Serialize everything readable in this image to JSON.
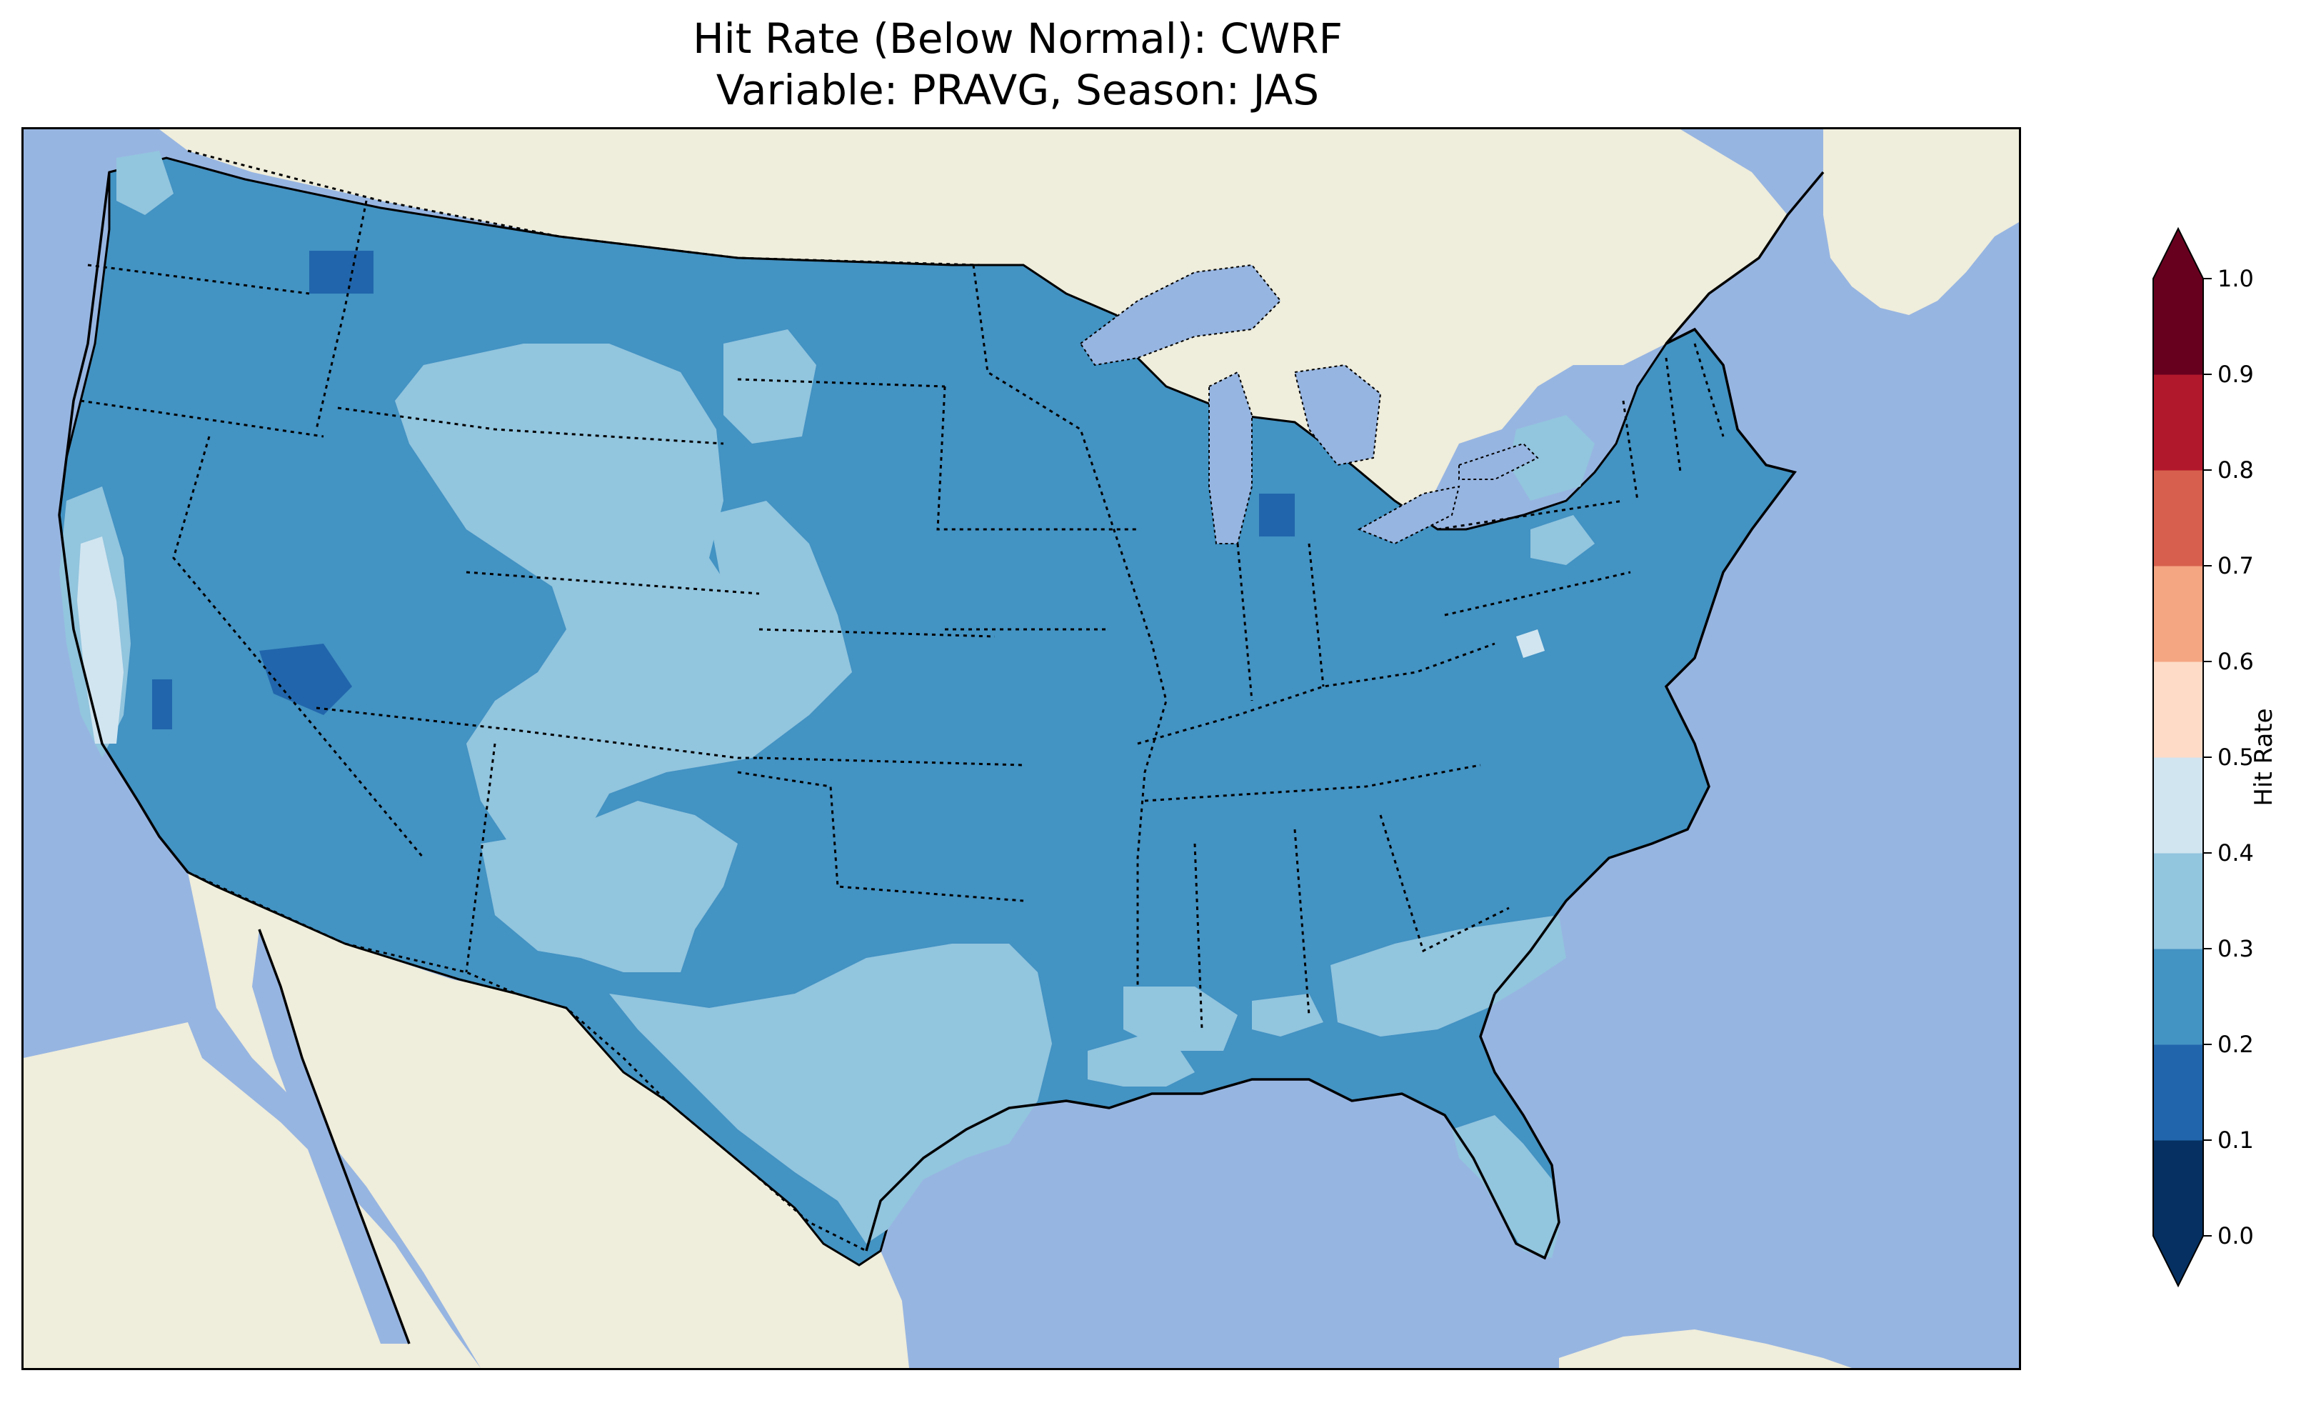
{
  "title": {
    "line1": "Hit Rate (Below Normal): CWRF",
    "line2": "Variable: PRAVG, Season: JAS"
  },
  "colors": {
    "ocean": "#97b5e1",
    "land": "#efeddb",
    "lake": "#97b5e1"
  },
  "colorbar": {
    "label": "Hit Rate",
    "ticks": [
      "0.0",
      "0.1",
      "0.2",
      "0.3",
      "0.4",
      "0.5",
      "0.6",
      "0.7",
      "0.8",
      "0.9",
      "1.0"
    ],
    "bins": [
      {
        "from": 0.0,
        "to": 0.1,
        "color": "#053061"
      },
      {
        "from": 0.1,
        "to": 0.2,
        "color": "#2166ac"
      },
      {
        "from": 0.2,
        "to": 0.3,
        "color": "#4393c3"
      },
      {
        "from": 0.3,
        "to": 0.4,
        "color": "#92c5de"
      },
      {
        "from": 0.4,
        "to": 0.5,
        "color": "#d1e5f0"
      },
      {
        "from": 0.5,
        "to": 0.6,
        "color": "#fddbc7"
      },
      {
        "from": 0.6,
        "to": 0.7,
        "color": "#f4a582"
      },
      {
        "from": 0.7,
        "to": 0.8,
        "color": "#d6604d"
      },
      {
        "from": 0.8,
        "to": 0.9,
        "color": "#b2182b"
      },
      {
        "from": 0.9,
        "to": 1.0,
        "color": "#67001f"
      }
    ],
    "extend": "both"
  },
  "map": {
    "dominant_value_bin": "0.2-0.3",
    "regions": [
      {
        "name": "contiguous-us-base",
        "bin": "0.2-0.3"
      },
      {
        "name": "rockies-high-plains",
        "bin": "0.3-0.4"
      },
      {
        "name": "southwest-four-corners",
        "bin": "0.3-0.4"
      },
      {
        "name": "texas-southern-plains",
        "bin": "0.3-0.4"
      },
      {
        "name": "nebraska-sandhills",
        "bin": "0.3-0.4"
      },
      {
        "name": "north-dakota-west",
        "bin": "0.3-0.4"
      },
      {
        "name": "georgia-south-carolina",
        "bin": "0.3-0.4"
      },
      {
        "name": "florida-peninsula",
        "bin": "0.3-0.4"
      },
      {
        "name": "gulf-coast-louisiana",
        "bin": "0.3-0.4"
      },
      {
        "name": "new-york-pennsylvania",
        "bin": "0.3-0.4"
      },
      {
        "name": "washington-northwest",
        "bin": "0.3-0.4"
      },
      {
        "name": "california-coast",
        "bin": "0.4-0.5"
      },
      {
        "name": "idaho-north",
        "bin": "0.1-0.2"
      },
      {
        "name": "nevada-central",
        "bin": "0.1-0.2"
      },
      {
        "name": "california-sierra",
        "bin": "0.1-0.2"
      },
      {
        "name": "indiana-north",
        "bin": "0.1-0.2"
      }
    ]
  }
}
